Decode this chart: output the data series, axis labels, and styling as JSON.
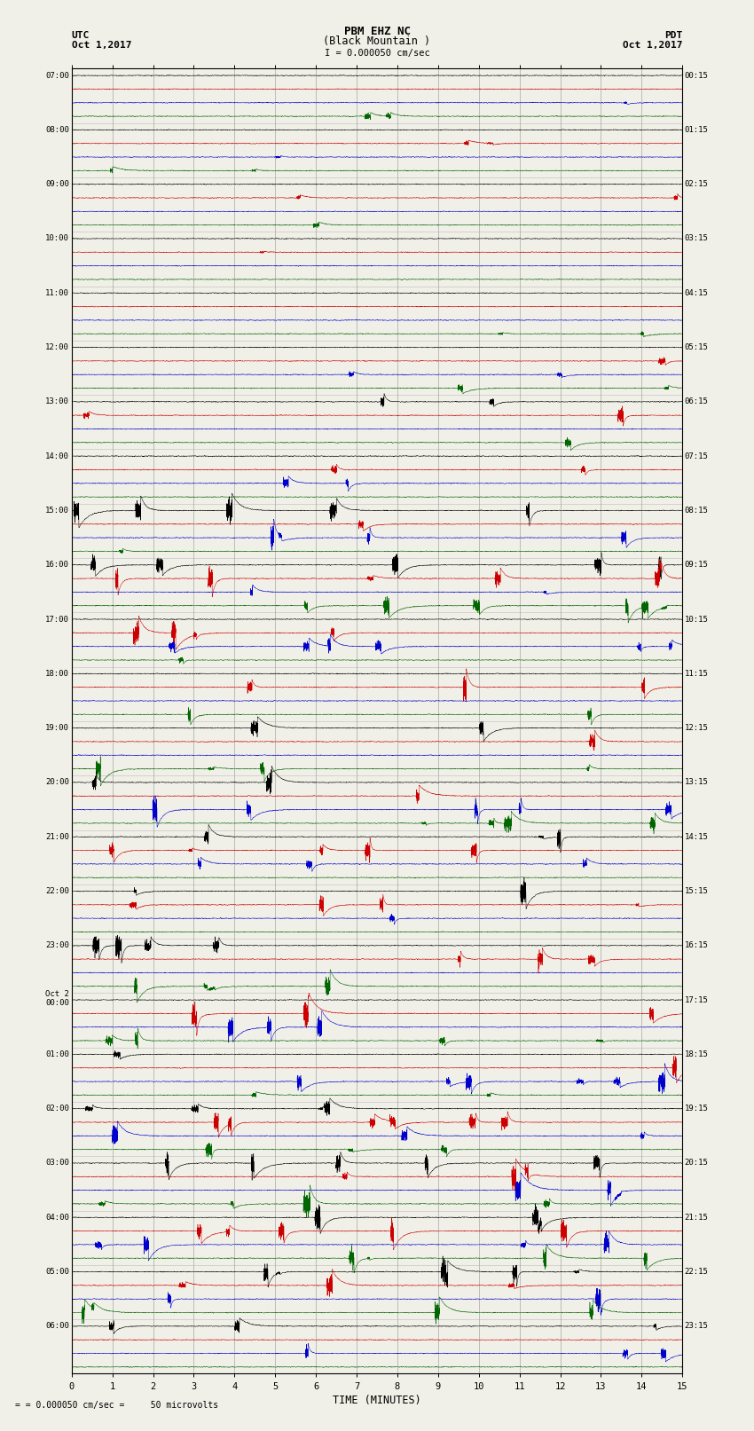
{
  "title_line1": "PBM EHZ NC",
  "title_line2": "(Black Mountain )",
  "title_scale": "I = 0.000050 cm/sec",
  "left_header1": "UTC",
  "left_header2": "Oct 1,2017",
  "right_header1": "PDT",
  "right_header2": "Oct 1,2017",
  "xlabel": "TIME (MINUTES)",
  "footer": "= 0.000050 cm/sec =     50 microvolts",
  "x_min": 0,
  "x_max": 15,
  "x_ticks": [
    0,
    1,
    2,
    3,
    4,
    5,
    6,
    7,
    8,
    9,
    10,
    11,
    12,
    13,
    14,
    15
  ],
  "left_times": [
    "07:00",
    "08:00",
    "09:00",
    "10:00",
    "11:00",
    "12:00",
    "13:00",
    "14:00",
    "15:00",
    "16:00",
    "17:00",
    "18:00",
    "19:00",
    "20:00",
    "21:00",
    "22:00",
    "23:00",
    "Oct 2\n00:00",
    "01:00",
    "02:00",
    "03:00",
    "04:00",
    "05:00",
    "06:00"
  ],
  "right_times": [
    "00:15",
    "01:15",
    "02:15",
    "03:15",
    "04:15",
    "05:15",
    "06:15",
    "07:15",
    "08:15",
    "09:15",
    "10:15",
    "11:15",
    "12:15",
    "13:15",
    "14:15",
    "15:15",
    "16:15",
    "17:15",
    "18:15",
    "19:15",
    "20:15",
    "21:15",
    "22:15",
    "23:15"
  ],
  "n_rows": 24,
  "traces_per_row": 4,
  "trace_colors": [
    "#000000",
    "#cc0000",
    "#0000cc",
    "#006600"
  ],
  "bg_color": "#f0f0e8",
  "plot_bg": "#f0f0e8",
  "grid_color": "#888888"
}
